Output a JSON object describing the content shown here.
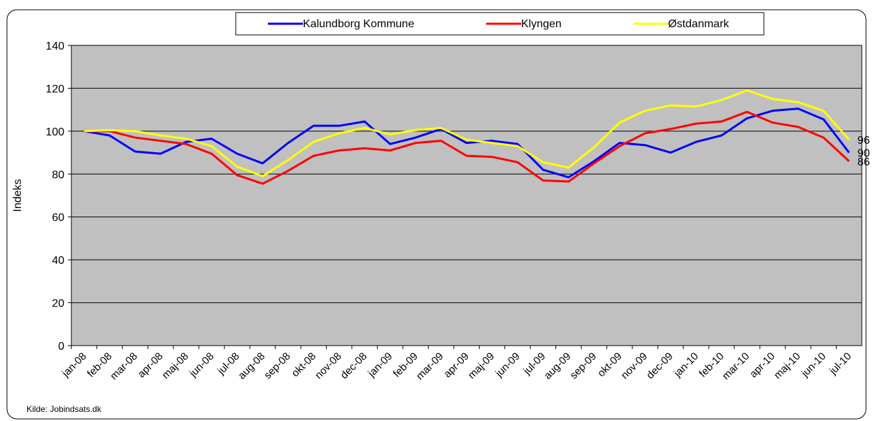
{
  "chart_data": {
    "type": "line",
    "categories": [
      "jan-08",
      "feb-08",
      "mar-08",
      "apr-08",
      "maj-08",
      "jun-08",
      "jul-08",
      "aug-08",
      "sep-08",
      "okt-08",
      "nov-08",
      "dec-08",
      "jan-09",
      "feb-09",
      "mar-09",
      "apr-09",
      "maj-09",
      "jun-09",
      "jul-09",
      "aug-09",
      "sep-09",
      "okt-09",
      "nov-09",
      "dec-09",
      "jan-10",
      "feb-10",
      "mar-10",
      "apr-10",
      "maj-10",
      "jun-10",
      "jul-10"
    ],
    "series": [
      {
        "name": "Kalundborg Kommune",
        "color": "#0000ff",
        "values": [
          100,
          98,
          90.5,
          89.5,
          95,
          96.5,
          89.5,
          85,
          94.5,
          102.5,
          102.5,
          104.5,
          94,
          97,
          101,
          94.5,
          95.5,
          94,
          82,
          78.5,
          86,
          94.5,
          93.5,
          90,
          95,
          98,
          106,
          109.5,
          110.5,
          105.5,
          90
        ]
      },
      {
        "name": "Klyngen",
        "color": "#ff0000",
        "values": [
          100,
          100,
          97,
          95.5,
          94,
          89.5,
          79.5,
          75.5,
          81.5,
          88.5,
          91,
          92,
          91,
          94.5,
          95.5,
          88.5,
          88,
          85.5,
          77,
          76.5,
          85,
          93,
          99,
          101,
          103.5,
          104.5,
          109,
          104,
          102,
          97,
          86
        ]
      },
      {
        "name": "Østdanmark",
        "color": "#ffff00",
        "values": [
          100,
          100.5,
          100,
          98,
          96.5,
          93,
          83.5,
          79,
          86.5,
          95,
          99,
          101.5,
          98.5,
          100.5,
          101.5,
          96,
          94.5,
          93,
          85.5,
          83,
          92.5,
          104,
          109.5,
          112,
          111.5,
          114.5,
          119,
          115,
          113.5,
          109.5,
          96
        ]
      }
    ],
    "y_label": "Indeks",
    "source": "Kilde: Jobindsats.dk",
    "ylim": [
      0,
      140
    ],
    "yticks": [
      0,
      20,
      40,
      60,
      80,
      100,
      120,
      140
    ],
    "grid": true,
    "legend": "top"
  }
}
